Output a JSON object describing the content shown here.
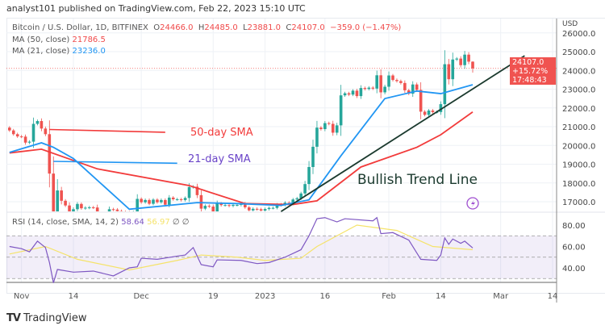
{
  "header": {
    "published": "analyst101 published on TradingView.com, Feb 22, 2023 15:10 UTC"
  },
  "legend": {
    "symbol": "Bitcoin / U.S. Dollar, 1D, BITFINEX",
    "open_label": "O",
    "open": "24466.0",
    "high_label": "H",
    "high": "24485.0",
    "low_label": "L",
    "low": "23881.0",
    "close_label": "C",
    "close": "24107.0",
    "change": "−359.0 (−1.47%)",
    "ma50_label": "MA (50, close)",
    "ma50_value": "21786.5",
    "ma21_label": "MA (21, close)",
    "ma21_value": "23236.0",
    "rsi_label": "RSI (14, close, SMA, 14, 2)",
    "rsi_value": "58.64",
    "rsi_sma_value": "56.97",
    "rsi_extra": "∅ ∅"
  },
  "price_tag": {
    "price": "24107.0",
    "change_pct": "+15.72%",
    "countdown": "17:48:43"
  },
  "annotations": {
    "sma50": "50-day SMA",
    "sma21": "21-day SMA",
    "trend": "Bullish Trend Line"
  },
  "footer": {
    "brand": "TradingView"
  },
  "colors": {
    "up": "#26a69a",
    "down": "#ef5350",
    "ma50": "#f23b3b",
    "ma21": "#2196f3",
    "rsi": "#7e57c2",
    "rsi_sma": "#f5e36a",
    "trend": "#1b3a2e",
    "label21": "#6a44c8"
  },
  "chart_data": [
    {
      "type": "candlestick",
      "currency": "USD",
      "ylim": [
        16480,
        26000
      ],
      "y_ticks": [
        "26000.0",
        "25000.0",
        "24000.0",
        "23000.0",
        "22000.0",
        "21000.0",
        "20000.0",
        "19000.0",
        "18000.0",
        "17000.0"
      ],
      "x_ticks": [
        [
          "Nov",
          "2022-11-01"
        ],
        [
          "14",
          "2022-11-14"
        ],
        [
          "Dec",
          "2022-12-01"
        ],
        [
          "19",
          "2022-12-19"
        ],
        [
          "2023",
          "2023-01-01"
        ],
        [
          "16",
          "2023-01-16"
        ],
        [
          "Feb",
          "2023-02-01"
        ],
        [
          "14",
          "2023-02-14"
        ],
        [
          "Mar",
          "2023-03-01"
        ],
        [
          "14",
          "2023-03-14"
        ]
      ],
      "first_date": "2022-10-29",
      "closes": [
        20800,
        20600,
        20480,
        20470,
        20150,
        20200,
        21150,
        21300,
        20900,
        20600,
        18500,
        15880,
        17600,
        17050,
        16800,
        16320,
        16600,
        16880,
        16650,
        16680,
        16700,
        16690,
        16250,
        15780,
        16200,
        16600,
        16580,
        16500,
        16450,
        16430,
        16200,
        16440,
        17150,
        16970,
        17090,
        16890,
        17110,
        16970,
        17090,
        16840,
        17220,
        17130,
        17130,
        17090,
        17200,
        17780,
        17800,
        17350,
        16630,
        16780,
        16740,
        16440,
        16900,
        16820,
        16820,
        16780,
        16830,
        16830,
        16910,
        16700,
        16540,
        16620,
        16600,
        16530,
        16610,
        16670,
        16670,
        16850,
        16830,
        16950,
        16940,
        17120,
        17180,
        17440,
        17940,
        18850,
        19930,
        20950,
        20870,
        21190,
        21150,
        20680,
        21070,
        22670,
        22780,
        22710,
        22920,
        22630,
        23060,
        23010,
        23080,
        23030,
        23740,
        22830,
        23130,
        23730,
        23490,
        23430,
        23330,
        22940,
        22760,
        23250,
        22960,
        21800,
        21630,
        21860,
        21780,
        21780,
        22200,
        24330,
        23530,
        24580,
        24630,
        24280,
        24840,
        24466,
        24107
      ],
      "last_candle": {
        "open": 24466.0,
        "high": 24485.0,
        "low": 23881.0,
        "close": 24107.0
      },
      "series": [
        {
          "name": "MA (50, close)",
          "points": [
            [
              "2022-10-29",
              19600
            ],
            [
              "2022-11-06",
              19800
            ],
            [
              "2022-11-20",
              18750
            ],
            [
              "2022-12-13",
              17860
            ],
            [
              "2022-12-27",
              16900
            ],
            [
              "2023-01-08",
              16850
            ],
            [
              "2023-01-14",
              17050
            ],
            [
              "2023-01-25",
              18850
            ],
            [
              "2023-02-08",
              19900
            ],
            [
              "2023-02-14",
              20570
            ],
            [
              "2023-02-22",
              21786.5
            ]
          ]
        },
        {
          "name": "MA (21, close)",
          "points": [
            [
              "2022-10-29",
              19630
            ],
            [
              "2022-11-06",
              20140
            ],
            [
              "2022-11-09",
              19900
            ],
            [
              "2022-11-14",
              19300
            ],
            [
              "2022-11-28",
              16600
            ],
            [
              "2022-12-15",
              16950
            ],
            [
              "2022-12-25",
              16900
            ],
            [
              "2023-01-05",
              16800
            ],
            [
              "2023-01-12",
              17100
            ],
            [
              "2023-01-20",
              19450
            ],
            [
              "2023-01-31",
              22500
            ],
            [
              "2023-02-08",
              22900
            ],
            [
              "2023-02-14",
              22760
            ],
            [
              "2023-02-22",
              23236
            ]
          ]
        }
      ],
      "trend_line": [
        [
          "2023-01-05",
          16480
        ],
        [
          "2023-03-07",
          24780
        ]
      ],
      "horizontal_markers": [
        [
          "2022-11-08",
          "2022-12-07",
          20850,
          20700
        ],
        [
          "2022-11-09",
          "2022-12-10",
          19150,
          19050
        ]
      ]
    },
    {
      "type": "line",
      "title": "RSI (14, close, SMA, 14, 2)",
      "ylim": [
        25,
        92
      ],
      "y_ticks": [
        "80.00",
        "60.00",
        "40.00"
      ],
      "bands": [
        30,
        50,
        70
      ],
      "series": [
        {
          "name": "RSI",
          "points": [
            [
              "2022-10-29",
              60
            ],
            [
              "2022-11-01",
              58
            ],
            [
              "2022-11-03",
              55
            ],
            [
              "2022-11-05",
              65
            ],
            [
              "2022-11-07",
              59
            ],
            [
              "2022-11-08",
              45
            ],
            [
              "2022-11-09",
              26
            ],
            [
              "2022-11-10",
              38.5
            ],
            [
              "2022-11-14",
              36
            ],
            [
              "2022-11-19",
              37
            ],
            [
              "2022-11-24",
              32.5
            ],
            [
              "2022-11-28",
              40
            ],
            [
              "2022-11-30",
              41
            ],
            [
              "2022-12-01",
              49
            ],
            [
              "2022-12-05",
              48
            ],
            [
              "2022-12-10",
              51
            ],
            [
              "2022-12-12",
              52
            ],
            [
              "2022-12-14",
              59
            ],
            [
              "2022-12-16",
              43
            ],
            [
              "2022-12-19",
              41
            ],
            [
              "2022-12-20",
              47.5
            ],
            [
              "2022-12-26",
              47
            ],
            [
              "2022-12-30",
              44
            ],
            [
              "2023-01-02",
              45
            ],
            [
              "2023-01-06",
              50
            ],
            [
              "2023-01-10",
              57
            ],
            [
              "2023-01-12",
              70
            ],
            [
              "2023-01-14",
              86
            ],
            [
              "2023-01-16",
              87
            ],
            [
              "2023-01-19",
              83
            ],
            [
              "2023-01-21",
              86
            ],
            [
              "2023-01-28",
              84
            ],
            [
              "2023-01-29",
              87
            ],
            [
              "2023-01-30",
              72
            ],
            [
              "2023-02-02",
              73
            ],
            [
              "2023-02-06",
              66
            ],
            [
              "2023-02-09",
              48
            ],
            [
              "2023-02-13",
              47
            ],
            [
              "2023-02-14",
              52
            ],
            [
              "2023-02-15",
              68
            ],
            [
              "2023-02-16",
              62
            ],
            [
              "2023-02-17",
              67
            ],
            [
              "2023-02-19",
              63
            ],
            [
              "2023-02-20",
              65
            ],
            [
              "2023-02-22",
              58.64
            ]
          ]
        },
        {
          "name": "RSI-based MA",
          "points": [
            [
              "2022-10-29",
              53
            ],
            [
              "2022-11-07",
              60
            ],
            [
              "2022-11-15",
              48
            ],
            [
              "2022-11-28",
              38
            ],
            [
              "2022-12-10",
              47
            ],
            [
              "2022-12-16",
              52
            ],
            [
              "2022-12-25",
              50
            ],
            [
              "2023-01-01",
              47
            ],
            [
              "2023-01-10",
              49
            ],
            [
              "2023-01-14",
              60
            ],
            [
              "2023-01-24",
              80
            ],
            [
              "2023-02-03",
              75
            ],
            [
              "2023-02-12",
              60
            ],
            [
              "2023-02-22",
              56.97
            ]
          ]
        }
      ]
    }
  ]
}
